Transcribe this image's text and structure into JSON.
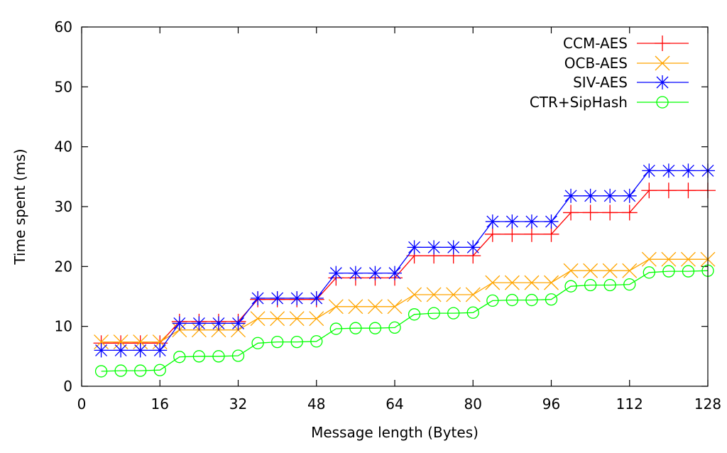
{
  "chart_data": {
    "type": "line",
    "title": "",
    "xlabel": "Message length (Bytes)",
    "ylabel": "Time spent (ms)",
    "xlim": [
      0,
      128
    ],
    "ylim": [
      0,
      60
    ],
    "xticks": [
      0,
      16,
      32,
      48,
      64,
      80,
      96,
      112,
      128
    ],
    "yticks": [
      0,
      10,
      20,
      30,
      40,
      50,
      60
    ],
    "grid": false,
    "legend_position": "top-right",
    "x": [
      4,
      8,
      12,
      16,
      20,
      24,
      28,
      32,
      36,
      40,
      44,
      48,
      52,
      56,
      60,
      64,
      68,
      72,
      76,
      80,
      84,
      88,
      92,
      96,
      100,
      104,
      108,
      112,
      116,
      120,
      124,
      128
    ],
    "series": [
      {
        "name": "CCM-AES",
        "color": "#ff0000",
        "marker": "plus",
        "values": [
          7.2,
          7.2,
          7.2,
          7.2,
          10.8,
          10.8,
          10.8,
          10.8,
          14.5,
          14.5,
          14.5,
          14.5,
          18.1,
          18.1,
          18.1,
          18.1,
          21.8,
          21.8,
          21.8,
          21.8,
          25.4,
          25.4,
          25.4,
          25.4,
          29.0,
          29.0,
          29.0,
          29.0,
          32.7,
          32.7,
          32.7,
          32.7
        ]
      },
      {
        "name": "OCB-AES",
        "color": "#ffa500",
        "marker": "cross",
        "values": [
          7.4,
          7.4,
          7.4,
          7.4,
          9.4,
          9.4,
          9.4,
          9.4,
          11.3,
          11.3,
          11.3,
          11.3,
          13.3,
          13.3,
          13.3,
          13.3,
          15.3,
          15.3,
          15.3,
          15.3,
          17.3,
          17.3,
          17.3,
          17.3,
          19.3,
          19.3,
          19.3,
          19.3,
          21.2,
          21.2,
          21.2,
          21.2
        ]
      },
      {
        "name": "SIV-AES",
        "color": "#0000ff",
        "marker": "star",
        "values": [
          6.0,
          6.0,
          6.0,
          6.0,
          10.5,
          10.5,
          10.5,
          10.5,
          14.7,
          14.7,
          14.7,
          14.7,
          18.9,
          18.9,
          18.9,
          18.9,
          23.2,
          23.2,
          23.2,
          23.2,
          27.5,
          27.5,
          27.5,
          27.5,
          31.8,
          31.8,
          31.8,
          31.8,
          36.0,
          36.0,
          36.0,
          36.0
        ]
      },
      {
        "name": "CTR+SipHash",
        "color": "#00ff00",
        "marker": "circle",
        "values": [
          2.5,
          2.6,
          2.6,
          2.7,
          4.9,
          5.0,
          5.0,
          5.1,
          7.2,
          7.4,
          7.4,
          7.5,
          9.6,
          9.7,
          9.7,
          9.8,
          12.0,
          12.2,
          12.2,
          12.3,
          14.3,
          14.4,
          14.4,
          14.5,
          16.7,
          16.9,
          16.9,
          17.0,
          19.0,
          19.2,
          19.2,
          19.3
        ]
      }
    ]
  }
}
